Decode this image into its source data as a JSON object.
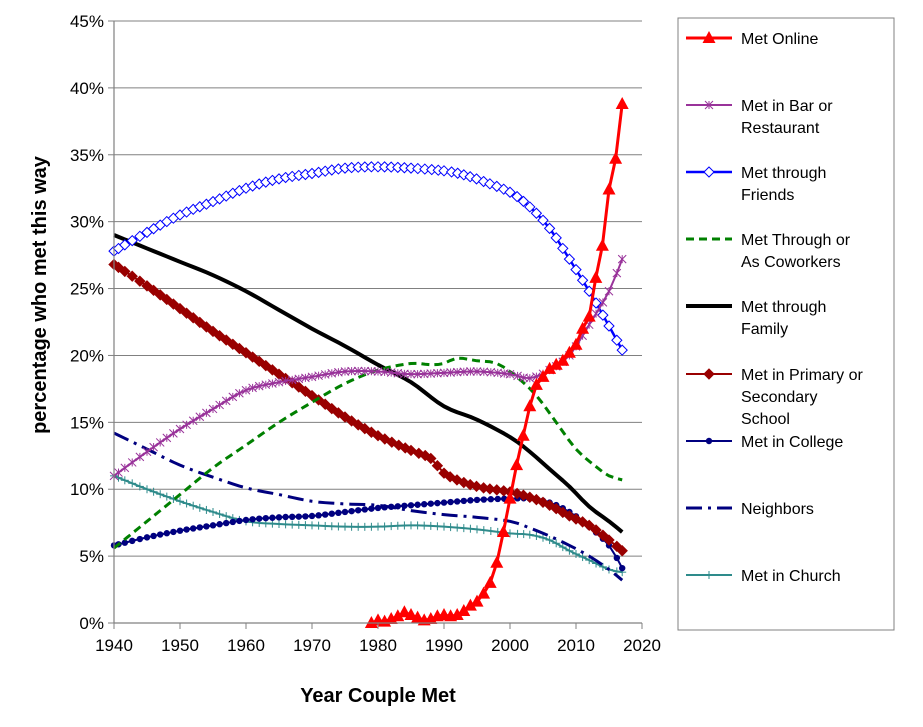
{
  "chart_data": {
    "type": "line",
    "xlabel": "Year Couple Met",
    "ylabel": "percentage who met this way",
    "xlim": [
      1940,
      2020
    ],
    "ylim": [
      0,
      45
    ],
    "x_ticks": [
      "1940",
      "1950",
      "1960",
      "1970",
      "1980",
      "1990",
      "2000",
      "2010",
      "2020"
    ],
    "y_ticks": [
      "0%",
      "5%",
      "10%",
      "15%",
      "20%",
      "25%",
      "30%",
      "35%",
      "40%",
      "45%"
    ],
    "grid": "horizontal",
    "legend_position": "right",
    "series": [
      {
        "name": "Met Online",
        "color": "#ff0000",
        "style": "solid",
        "marker": "triangle",
        "points": [
          [
            1979,
            0
          ],
          [
            1980,
            0.2
          ],
          [
            1981,
            0.1
          ],
          [
            1982,
            0.3
          ],
          [
            1983,
            0.5
          ],
          [
            1984,
            0.8
          ],
          [
            1985,
            0.6
          ],
          [
            1986,
            0.4
          ],
          [
            1987,
            0.2
          ],
          [
            1988,
            0.3
          ],
          [
            1989,
            0.5
          ],
          [
            1990,
            0.6
          ],
          [
            1991,
            0.5
          ],
          [
            1992,
            0.6
          ],
          [
            1993,
            0.9
          ],
          [
            1994,
            1.3
          ],
          [
            1995,
            1.6
          ],
          [
            1996,
            2.2
          ],
          [
            1997,
            3.0
          ],
          [
            1998,
            4.5
          ],
          [
            1999,
            6.8
          ],
          [
            2000,
            9.3
          ],
          [
            2001,
            11.8
          ],
          [
            2002,
            14.0
          ],
          [
            2003,
            16.2
          ],
          [
            2004,
            17.8
          ],
          [
            2005,
            18.4
          ],
          [
            2006,
            19.0
          ],
          [
            2007,
            19.3
          ],
          [
            2008,
            19.6
          ],
          [
            2009,
            20.2
          ],
          [
            2010,
            20.8
          ],
          [
            2011,
            22.0
          ],
          [
            2012,
            22.9
          ],
          [
            2013,
            25.8
          ],
          [
            2014,
            28.2
          ],
          [
            2015,
            32.4
          ],
          [
            2016,
            34.7
          ],
          [
            2017,
            38.8
          ]
        ]
      },
      {
        "name": "Met in Bar or Restaurant",
        "color": "#99339a",
        "style": "solid",
        "marker": "star",
        "points": [
          [
            1940,
            11.0
          ],
          [
            1945,
            12.8
          ],
          [
            1950,
            14.5
          ],
          [
            1955,
            16.0
          ],
          [
            1960,
            17.4
          ],
          [
            1965,
            18.0
          ],
          [
            1970,
            18.4
          ],
          [
            1975,
            18.8
          ],
          [
            1980,
            18.8
          ],
          [
            1985,
            18.6
          ],
          [
            1990,
            18.7
          ],
          [
            1995,
            18.8
          ],
          [
            2000,
            18.6
          ],
          [
            2003,
            18.3
          ],
          [
            2006,
            18.9
          ],
          [
            2009,
            20.0
          ],
          [
            2012,
            22.3
          ],
          [
            2015,
            24.8
          ],
          [
            2017,
            27.2
          ]
        ]
      },
      {
        "name": "Met through Friends",
        "color": "#0000ff",
        "style": "solid",
        "marker": "diamond",
        "points": [
          [
            1940,
            27.8
          ],
          [
            1945,
            29.2
          ],
          [
            1950,
            30.5
          ],
          [
            1955,
            31.5
          ],
          [
            1960,
            32.5
          ],
          [
            1965,
            33.2
          ],
          [
            1970,
            33.6
          ],
          [
            1975,
            34.0
          ],
          [
            1980,
            34.1
          ],
          [
            1985,
            34.0
          ],
          [
            1990,
            33.8
          ],
          [
            1993,
            33.5
          ],
          [
            1996,
            33.0
          ],
          [
            2000,
            32.2
          ],
          [
            2003,
            31.1
          ],
          [
            2006,
            29.5
          ],
          [
            2009,
            27.2
          ],
          [
            2012,
            24.8
          ],
          [
            2015,
            22.2
          ],
          [
            2017,
            20.4
          ]
        ]
      },
      {
        "name": "Met Through or As Coworkers",
        "color": "#008000",
        "style": "dashed",
        "marker": "none",
        "points": [
          [
            1940,
            5.6
          ],
          [
            1945,
            7.6
          ],
          [
            1950,
            9.6
          ],
          [
            1955,
            11.6
          ],
          [
            1960,
            13.3
          ],
          [
            1965,
            15.0
          ],
          [
            1970,
            16.5
          ],
          [
            1975,
            17.9
          ],
          [
            1980,
            18.9
          ],
          [
            1985,
            19.4
          ],
          [
            1988,
            19.3
          ],
          [
            1990,
            19.4
          ],
          [
            1992,
            19.8
          ],
          [
            1995,
            19.6
          ],
          [
            1998,
            19.4
          ],
          [
            2001,
            18.4
          ],
          [
            2004,
            17.0
          ],
          [
            2007,
            15.0
          ],
          [
            2010,
            13.0
          ],
          [
            2013,
            11.7
          ],
          [
            2015,
            11.0
          ],
          [
            2017,
            10.7
          ]
        ]
      },
      {
        "name": "Met through Family",
        "color": "#000000",
        "style": "solid",
        "marker": "none",
        "points": [
          [
            1940,
            29.0
          ],
          [
            1945,
            28.0
          ],
          [
            1950,
            27.0
          ],
          [
            1955,
            26.0
          ],
          [
            1960,
            24.8
          ],
          [
            1965,
            23.4
          ],
          [
            1970,
            22.0
          ],
          [
            1975,
            20.7
          ],
          [
            1980,
            19.3
          ],
          [
            1985,
            18.0
          ],
          [
            1990,
            16.2
          ],
          [
            1995,
            15.2
          ],
          [
            2000,
            13.9
          ],
          [
            2003,
            12.8
          ],
          [
            2006,
            11.5
          ],
          [
            2009,
            10.2
          ],
          [
            2012,
            8.7
          ],
          [
            2015,
            7.6
          ],
          [
            2017,
            6.8
          ]
        ]
      },
      {
        "name": "Met in Primary or Secondary School",
        "color": "#990000",
        "style": "solid",
        "marker": "diamond",
        "points": [
          [
            1940,
            26.8
          ],
          [
            1945,
            25.2
          ],
          [
            1950,
            23.5
          ],
          [
            1955,
            21.8
          ],
          [
            1960,
            20.2
          ],
          [
            1965,
            18.6
          ],
          [
            1970,
            17.0
          ],
          [
            1975,
            15.4
          ],
          [
            1980,
            14.0
          ],
          [
            1985,
            12.9
          ],
          [
            1988,
            12.3
          ],
          [
            1990,
            11.2
          ],
          [
            1993,
            10.5
          ],
          [
            1996,
            10.1
          ],
          [
            2000,
            9.8
          ],
          [
            2003,
            9.4
          ],
          [
            2006,
            8.8
          ],
          [
            2009,
            8.0
          ],
          [
            2012,
            7.3
          ],
          [
            2015,
            6.2
          ],
          [
            2017,
            5.4
          ]
        ]
      },
      {
        "name": "Met in College",
        "color": "#000080",
        "style": "solid",
        "marker": "circle",
        "points": [
          [
            1940,
            5.8
          ],
          [
            1945,
            6.4
          ],
          [
            1950,
            6.9
          ],
          [
            1955,
            7.3
          ],
          [
            1960,
            7.7
          ],
          [
            1965,
            7.9
          ],
          [
            1970,
            8.0
          ],
          [
            1975,
            8.3
          ],
          [
            1980,
            8.6
          ],
          [
            1985,
            8.8
          ],
          [
            1990,
            9.0
          ],
          [
            1995,
            9.2
          ],
          [
            2000,
            9.3
          ],
          [
            2003,
            9.3
          ],
          [
            2006,
            9.0
          ],
          [
            2009,
            8.3
          ],
          [
            2012,
            7.2
          ],
          [
            2015,
            5.8
          ],
          [
            2017,
            4.1
          ]
        ]
      },
      {
        "name": "Neighbors",
        "color": "#00007f",
        "style": "dashdot",
        "marker": "none",
        "points": [
          [
            1940,
            14.2
          ],
          [
            1945,
            13.0
          ],
          [
            1950,
            11.8
          ],
          [
            1955,
            10.9
          ],
          [
            1960,
            10.1
          ],
          [
            1965,
            9.6
          ],
          [
            1970,
            9.1
          ],
          [
            1975,
            8.9
          ],
          [
            1980,
            8.8
          ],
          [
            1985,
            8.4
          ],
          [
            1990,
            8.1
          ],
          [
            1995,
            7.9
          ],
          [
            2000,
            7.6
          ],
          [
            2003,
            7.1
          ],
          [
            2006,
            6.5
          ],
          [
            2009,
            5.8
          ],
          [
            2012,
            5.0
          ],
          [
            2015,
            4.0
          ],
          [
            2017,
            3.2
          ]
        ]
      },
      {
        "name": "Met in Church",
        "color": "#2e8b8b",
        "style": "solid",
        "marker": "plus",
        "points": [
          [
            1940,
            11.0
          ],
          [
            1945,
            10.0
          ],
          [
            1950,
            9.1
          ],
          [
            1955,
            8.3
          ],
          [
            1960,
            7.6
          ],
          [
            1965,
            7.4
          ],
          [
            1970,
            7.3
          ],
          [
            1975,
            7.2
          ],
          [
            1980,
            7.2
          ],
          [
            1985,
            7.3
          ],
          [
            1990,
            7.2
          ],
          [
            1995,
            7.0
          ],
          [
            2000,
            6.7
          ],
          [
            2003,
            6.6
          ],
          [
            2006,
            6.2
          ],
          [
            2009,
            5.4
          ],
          [
            2012,
            4.7
          ],
          [
            2015,
            4.0
          ],
          [
            2017,
            3.8
          ]
        ]
      }
    ]
  },
  "legend": [
    {
      "lines": [
        "Met Online"
      ]
    },
    {
      "lines": [
        "Met in Bar or",
        "Restaurant"
      ]
    },
    {
      "lines": [
        "Met through",
        "Friends"
      ]
    },
    {
      "lines": [
        "Met Through or",
        "As Coworkers"
      ]
    },
    {
      "lines": [
        "Met through",
        "Family"
      ]
    },
    {
      "lines": [
        "Met in Primary or",
        "Secondary",
        "School"
      ]
    },
    {
      "lines": [
        "Met in College"
      ]
    },
    {
      "lines": [
        "Neighbors"
      ]
    },
    {
      "lines": [
        "Met in Church"
      ]
    }
  ]
}
